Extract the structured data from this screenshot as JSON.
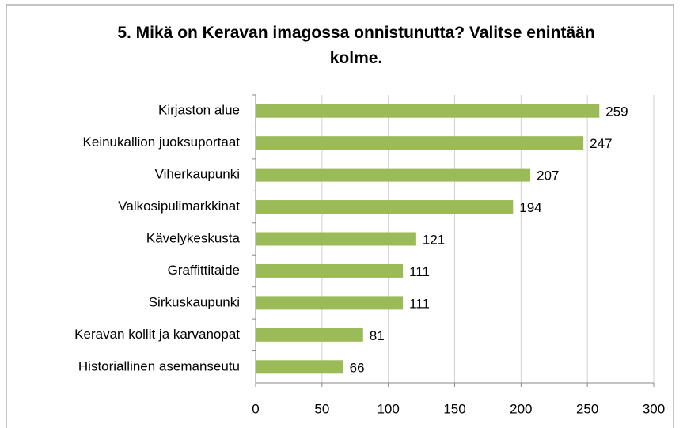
{
  "chart_data": {
    "type": "bar",
    "orientation": "horizontal",
    "title": "5. Mikä on Keravan imagossa onnistunutta? Valitse enintään kolme.",
    "categories": [
      "Kirjaston alue",
      "Keinukallion juoksuportaat",
      "Viherkaupunki",
      "Valkosipulimarkkinat",
      "Kävelykeskusta",
      "Graffittitaide",
      "Sirkuskaupunki",
      "Keravan kollit ja karvanopat",
      "Historiallinen asemanseutu"
    ],
    "values": [
      259,
      247,
      207,
      194,
      121,
      111,
      111,
      81,
      66
    ],
    "color": "#9bbb59",
    "xlim": [
      0,
      300
    ],
    "xticks": [
      0,
      50,
      100,
      150,
      200,
      250,
      300
    ],
    "grid": true
  }
}
